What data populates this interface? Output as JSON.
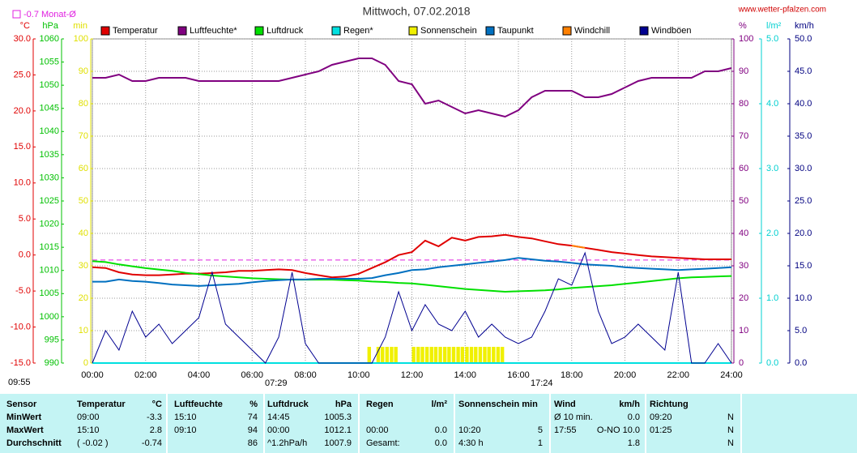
{
  "chart_data": {
    "type": "line",
    "title": "Mittwoch, 07.02.2018",
    "source": "www.wetter-pfalzen.com",
    "reference_line": {
      "value": -0.7,
      "label": "-0.7 Monat-Ø",
      "color": "#e020e0",
      "axis": "°C"
    },
    "sun_times": [
      "09:55",
      "07:29",
      "17:24"
    ],
    "grid": true,
    "grid_axis": "min",
    "xlim": [
      0,
      24
    ],
    "xticks": [
      {
        "value": 0,
        "label": "00:00"
      },
      {
        "value": 2,
        "label": "02:00"
      },
      {
        "value": 4,
        "label": "04:00"
      },
      {
        "value": 6,
        "label": "06:00"
      },
      {
        "value": 8,
        "label": "08:00"
      },
      {
        "value": 10,
        "label": "10:00"
      },
      {
        "value": 12,
        "label": "12:00"
      },
      {
        "value": 14,
        "label": "14:00"
      },
      {
        "value": 16,
        "label": "16:00"
      },
      {
        "value": 18,
        "label": "18:00"
      },
      {
        "value": 20,
        "label": "20:00"
      },
      {
        "value": 22,
        "label": "22:00"
      },
      {
        "value": 24,
        "label": "24:00"
      }
    ],
    "axes": [
      {
        "unit": "°C",
        "side": "left",
        "color": "#e00000",
        "lim": [
          -15,
          30
        ],
        "ticks": [
          {
            "value": -15,
            "label": "-15.0"
          },
          {
            "value": -10,
            "label": "-10.0"
          },
          {
            "value": -5,
            "label": "-5.0"
          },
          {
            "value": 0,
            "label": "0.0"
          },
          {
            "value": 5,
            "label": "5.0"
          },
          {
            "value": 10,
            "label": "10.0"
          },
          {
            "value": 15,
            "label": "15.0"
          },
          {
            "value": 20,
            "label": "20.0"
          },
          {
            "value": 25,
            "label": "25.0"
          },
          {
            "value": 30,
            "label": "30.0"
          }
        ]
      },
      {
        "unit": "hPa",
        "side": "left",
        "color": "#00c000",
        "lim": [
          990,
          1060
        ],
        "ticks": [
          990,
          995,
          1000,
          1005,
          1010,
          1015,
          1020,
          1025,
          1030,
          1035,
          1040,
          1045,
          1050,
          1055,
          1060
        ]
      },
      {
        "unit": "min",
        "side": "left",
        "color": "#e0e000",
        "lim": [
          0,
          100
        ],
        "ticks": [
          0,
          10,
          20,
          30,
          40,
          50,
          60,
          70,
          80,
          90,
          100
        ]
      },
      {
        "unit": "%",
        "side": "right",
        "color": "#800080",
        "lim": [
          0,
          100
        ],
        "ticks": [
          0,
          10,
          20,
          30,
          40,
          50,
          60,
          70,
          80,
          90,
          100
        ]
      },
      {
        "unit": "l/m²",
        "side": "right",
        "color": "#00d0d0",
        "lim": [
          0,
          5
        ],
        "ticks": [
          {
            "value": 0,
            "label": "0.0"
          },
          {
            "value": 1,
            "label": "1.0"
          },
          {
            "value": 2,
            "label": "2.0"
          },
          {
            "value": 3,
            "label": "3.0"
          },
          {
            "value": 4,
            "label": "4.0"
          },
          {
            "value": 5,
            "label": "5.0"
          }
        ]
      },
      {
        "unit": "km/h",
        "side": "right",
        "color": "#000080",
        "lim": [
          0,
          50
        ],
        "ticks": [
          {
            "value": 0,
            "label": "0.0"
          },
          {
            "value": 5,
            "label": "5.0"
          },
          {
            "value": 10,
            "label": "10.0"
          },
          {
            "value": 15,
            "label": "15.0"
          },
          {
            "value": 20,
            "label": "20.0"
          },
          {
            "value": 25,
            "label": "25.0"
          },
          {
            "value": 30,
            "label": "30.0"
          },
          {
            "value": 35,
            "label": "35.0"
          },
          {
            "value": 40,
            "label": "40.0"
          },
          {
            "value": 45,
            "label": "45.0"
          },
          {
            "value": 50,
            "label": "50.0"
          }
        ]
      }
    ],
    "x": [
      0,
      0.5,
      1,
      1.5,
      2,
      2.5,
      3,
      3.5,
      4,
      4.5,
      5,
      5.5,
      6,
      6.5,
      7,
      7.5,
      8,
      8.5,
      9,
      9.5,
      10,
      10.5,
      11,
      11.5,
      12,
      12.5,
      13,
      13.5,
      14,
      14.5,
      15,
      15.5,
      16,
      16.5,
      17,
      17.5,
      18,
      18.5,
      19,
      19.5,
      20,
      20.5,
      21,
      21.5,
      22,
      22.5,
      23,
      23.5,
      24
    ],
    "series": [
      {
        "name": "Temperatur",
        "color": "#e00000",
        "axis": "°C",
        "kind": "line",
        "values": [
          -1.7,
          -1.8,
          -2.4,
          -2.7,
          -2.8,
          -2.8,
          -2.7,
          -2.6,
          -2.6,
          -2.5,
          -2.4,
          -2.2,
          -2.2,
          -2.1,
          -2.0,
          -2.1,
          -2.5,
          -2.8,
          -3.1,
          -3.0,
          -2.6,
          -1.8,
          -1.0,
          0.0,
          0.4,
          2.0,
          1.2,
          2.4,
          2.0,
          2.5,
          2.6,
          2.8,
          2.5,
          2.3,
          1.9,
          1.5,
          1.3,
          1.0,
          0.7,
          0.4,
          0.2,
          0.0,
          -0.2,
          -0.3,
          -0.4,
          -0.5,
          -0.6,
          -0.6,
          -0.6
        ]
      },
      {
        "name": "Luftfeuchte*",
        "color": "#800080",
        "axis": "%",
        "kind": "line",
        "values": [
          88,
          88,
          89,
          87,
          87,
          88,
          88,
          88,
          87,
          87,
          87,
          87,
          87,
          87,
          87,
          88,
          89,
          90,
          92,
          93,
          94,
          94,
          92,
          87,
          86,
          80,
          81,
          79,
          77,
          78,
          77,
          76,
          78,
          82,
          84,
          84,
          84,
          82,
          82,
          83,
          85,
          87,
          88,
          88,
          88,
          88,
          90,
          90,
          91
        ]
      },
      {
        "name": "Luftdruck",
        "color": "#00e000",
        "axis": "hPa",
        "kind": "line",
        "values": [
          1012,
          1011.8,
          1011.3,
          1010.9,
          1010.5,
          1010.2,
          1009.9,
          1009.5,
          1009.2,
          1008.9,
          1008.7,
          1008.5,
          1008.3,
          1008.2,
          1008.1,
          1008,
          1008,
          1008,
          1008,
          1007.9,
          1007.8,
          1007.6,
          1007.5,
          1007.3,
          1007.2,
          1006.9,
          1006.6,
          1006.3,
          1006.0,
          1005.8,
          1005.6,
          1005.4,
          1005.5,
          1005.6,
          1005.7,
          1005.9,
          1006.2,
          1006.4,
          1006.6,
          1006.8,
          1007.1,
          1007.4,
          1007.7,
          1008.0,
          1008.3,
          1008.5,
          1008.6,
          1008.7,
          1008.8
        ]
      },
      {
        "name": "Regen*",
        "color": "#00e0e0",
        "axis": "l/m²",
        "kind": "line",
        "values": [
          0,
          0,
          0,
          0,
          0,
          0,
          0,
          0,
          0,
          0,
          0,
          0,
          0,
          0,
          0,
          0,
          0,
          0,
          0,
          0,
          0,
          0,
          0,
          0,
          0,
          0,
          0,
          0,
          0,
          0,
          0,
          0,
          0,
          0,
          0,
          0,
          0,
          0,
          0,
          0,
          0,
          0,
          0,
          0,
          0,
          0,
          0,
          0,
          0
        ]
      },
      {
        "name": "Sonnenschein",
        "color": "#f0f000",
        "axis": "min",
        "kind": "bar",
        "x": [
          10.33,
          10.67,
          10.83,
          11.0,
          11.17,
          11.33,
          12.0,
          12.17,
          12.33,
          12.5,
          12.67,
          12.83,
          13.0,
          13.17,
          13.33,
          13.5,
          13.67,
          13.83,
          14.0,
          14.17,
          14.33,
          14.5,
          14.67,
          14.83,
          15.0,
          15.17,
          15.33
        ],
        "values": [
          5,
          5,
          5,
          5,
          5,
          5,
          5,
          5,
          5,
          5,
          5,
          5,
          5,
          5,
          5,
          5,
          5,
          5,
          5,
          5,
          5,
          5,
          5,
          5,
          5,
          5,
          5
        ]
      },
      {
        "name": "Taupunkt",
        "color": "#0070c0",
        "axis": "°C",
        "kind": "line",
        "values": [
          -3.7,
          -3.7,
          -3.4,
          -3.6,
          -3.7,
          -3.9,
          -4.1,
          -4.2,
          -4.3,
          -4.2,
          -4.1,
          -4.0,
          -3.8,
          -3.6,
          -3.5,
          -3.4,
          -3.4,
          -3.3,
          -3.3,
          -3.3,
          -3.3,
          -3.2,
          -2.8,
          -2.5,
          -2.1,
          -2.0,
          -1.7,
          -1.5,
          -1.3,
          -1.1,
          -0.9,
          -0.7,
          -0.4,
          -0.6,
          -0.8,
          -0.9,
          -1.1,
          -1.3,
          -1.4,
          -1.5,
          -1.7,
          -1.8,
          -1.9,
          -2.0,
          -2.1,
          -2.0,
          -1.9,
          -1.8,
          -1.7
        ]
      },
      {
        "name": "Windchill",
        "color": "#ff8000",
        "axis": "°C",
        "kind": "line",
        "values": [
          null,
          null,
          null,
          null,
          null,
          null,
          null,
          null,
          null,
          null,
          null,
          null,
          null,
          null,
          null,
          null,
          null,
          null,
          null,
          null,
          null,
          null,
          null,
          null,
          null,
          null,
          null,
          null,
          null,
          null,
          null,
          null,
          null,
          null,
          null,
          null,
          1.3,
          1.0,
          null,
          null,
          null,
          null,
          null,
          null,
          null,
          null,
          null,
          null,
          null
        ]
      },
      {
        "name": "Windböen",
        "color": "#000090",
        "axis": "km/h",
        "kind": "line",
        "values": [
          0,
          5,
          2,
          8,
          4,
          6,
          3,
          5,
          7,
          14,
          6,
          4,
          2,
          0,
          4,
          14,
          3,
          0,
          0,
          0,
          0,
          0,
          4,
          11,
          5,
          9,
          6,
          5,
          8,
          4,
          6,
          4,
          3,
          4,
          8,
          13,
          12,
          17,
          8,
          3,
          4,
          6,
          4,
          2,
          14,
          0,
          0,
          3,
          0
        ]
      }
    ]
  },
  "table": {
    "header": [
      "Sensor",
      "Temperatur",
      "°C",
      "Luftfeuchte",
      "%",
      "Luftdruck",
      "hPa",
      "Regen",
      "l/m²",
      "Sonnenschein min",
      null,
      "Wind",
      "km/h",
      "Richtung",
      null
    ],
    "rows": [
      [
        "MinWert",
        "09:00",
        "-3.3",
        "15:10",
        "74",
        "14:45",
        "1005.3",
        null,
        null,
        null,
        null,
        "Ø 10 min.",
        "0.0",
        "09:20",
        "N"
      ],
      [
        "MaxWert",
        "15:10",
        "2.8",
        "09:10",
        "94",
        "00:00",
        "1012.1",
        "00:00",
        "0.0",
        "10:20",
        "5",
        "17:55",
        "O-NO 10.0",
        "01:25",
        "N"
      ],
      [
        "Durchschnitt",
        "( -0.02 )",
        "-0.74",
        null,
        "86",
        "^1.2hPa/h",
        "1007.9",
        "Gesamt:",
        "0.0",
        "4:30 h",
        "1",
        null,
        "1.8",
        null,
        "N"
      ]
    ]
  }
}
